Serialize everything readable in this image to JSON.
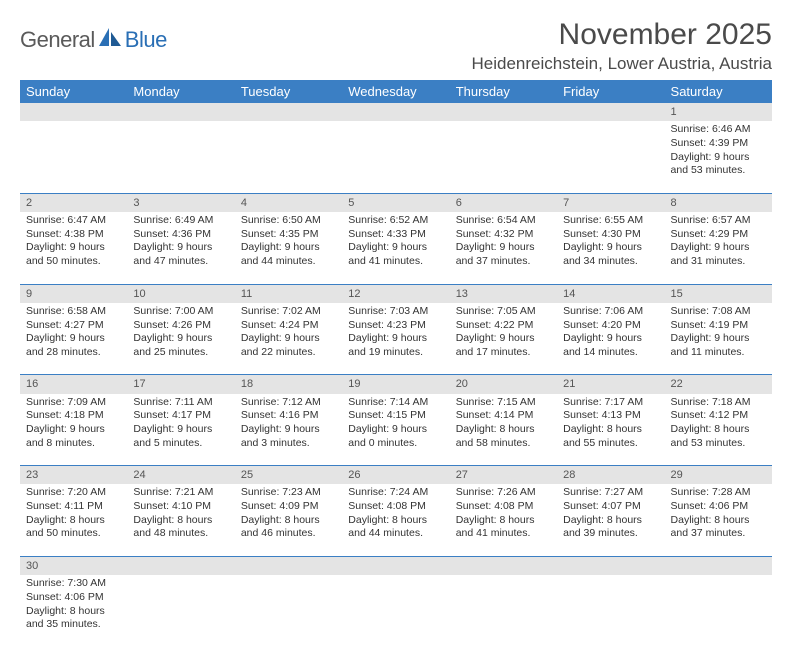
{
  "brand": {
    "text1": "General",
    "text2": "Blue"
  },
  "colors": {
    "header_bg": "#3b7fc4",
    "header_fg": "#ffffff",
    "daynum_bg": "#e4e4e4",
    "row_divider": "#3b7fc4",
    "body_text": "#333333",
    "title_text": "#4a4a4a",
    "logo_grey": "#5a5a5a",
    "logo_blue": "#2a6fb5"
  },
  "title": "November 2025",
  "location": "Heidenreichstein, Lower Austria, Austria",
  "weekdays": [
    "Sunday",
    "Monday",
    "Tuesday",
    "Wednesday",
    "Thursday",
    "Friday",
    "Saturday"
  ],
  "weeks": [
    [
      null,
      null,
      null,
      null,
      null,
      null,
      {
        "n": "1",
        "sr": "Sunrise: 6:46 AM",
        "ss": "Sunset: 4:39 PM",
        "dl": "Daylight: 9 hours and 53 minutes."
      }
    ],
    [
      {
        "n": "2",
        "sr": "Sunrise: 6:47 AM",
        "ss": "Sunset: 4:38 PM",
        "dl": "Daylight: 9 hours and 50 minutes."
      },
      {
        "n": "3",
        "sr": "Sunrise: 6:49 AM",
        "ss": "Sunset: 4:36 PM",
        "dl": "Daylight: 9 hours and 47 minutes."
      },
      {
        "n": "4",
        "sr": "Sunrise: 6:50 AM",
        "ss": "Sunset: 4:35 PM",
        "dl": "Daylight: 9 hours and 44 minutes."
      },
      {
        "n": "5",
        "sr": "Sunrise: 6:52 AM",
        "ss": "Sunset: 4:33 PM",
        "dl": "Daylight: 9 hours and 41 minutes."
      },
      {
        "n": "6",
        "sr": "Sunrise: 6:54 AM",
        "ss": "Sunset: 4:32 PM",
        "dl": "Daylight: 9 hours and 37 minutes."
      },
      {
        "n": "7",
        "sr": "Sunrise: 6:55 AM",
        "ss": "Sunset: 4:30 PM",
        "dl": "Daylight: 9 hours and 34 minutes."
      },
      {
        "n": "8",
        "sr": "Sunrise: 6:57 AM",
        "ss": "Sunset: 4:29 PM",
        "dl": "Daylight: 9 hours and 31 minutes."
      }
    ],
    [
      {
        "n": "9",
        "sr": "Sunrise: 6:58 AM",
        "ss": "Sunset: 4:27 PM",
        "dl": "Daylight: 9 hours and 28 minutes."
      },
      {
        "n": "10",
        "sr": "Sunrise: 7:00 AM",
        "ss": "Sunset: 4:26 PM",
        "dl": "Daylight: 9 hours and 25 minutes."
      },
      {
        "n": "11",
        "sr": "Sunrise: 7:02 AM",
        "ss": "Sunset: 4:24 PM",
        "dl": "Daylight: 9 hours and 22 minutes."
      },
      {
        "n": "12",
        "sr": "Sunrise: 7:03 AM",
        "ss": "Sunset: 4:23 PM",
        "dl": "Daylight: 9 hours and 19 minutes."
      },
      {
        "n": "13",
        "sr": "Sunrise: 7:05 AM",
        "ss": "Sunset: 4:22 PM",
        "dl": "Daylight: 9 hours and 17 minutes."
      },
      {
        "n": "14",
        "sr": "Sunrise: 7:06 AM",
        "ss": "Sunset: 4:20 PM",
        "dl": "Daylight: 9 hours and 14 minutes."
      },
      {
        "n": "15",
        "sr": "Sunrise: 7:08 AM",
        "ss": "Sunset: 4:19 PM",
        "dl": "Daylight: 9 hours and 11 minutes."
      }
    ],
    [
      {
        "n": "16",
        "sr": "Sunrise: 7:09 AM",
        "ss": "Sunset: 4:18 PM",
        "dl": "Daylight: 9 hours and 8 minutes."
      },
      {
        "n": "17",
        "sr": "Sunrise: 7:11 AM",
        "ss": "Sunset: 4:17 PM",
        "dl": "Daylight: 9 hours and 5 minutes."
      },
      {
        "n": "18",
        "sr": "Sunrise: 7:12 AM",
        "ss": "Sunset: 4:16 PM",
        "dl": "Daylight: 9 hours and 3 minutes."
      },
      {
        "n": "19",
        "sr": "Sunrise: 7:14 AM",
        "ss": "Sunset: 4:15 PM",
        "dl": "Daylight: 9 hours and 0 minutes."
      },
      {
        "n": "20",
        "sr": "Sunrise: 7:15 AM",
        "ss": "Sunset: 4:14 PM",
        "dl": "Daylight: 8 hours and 58 minutes."
      },
      {
        "n": "21",
        "sr": "Sunrise: 7:17 AM",
        "ss": "Sunset: 4:13 PM",
        "dl": "Daylight: 8 hours and 55 minutes."
      },
      {
        "n": "22",
        "sr": "Sunrise: 7:18 AM",
        "ss": "Sunset: 4:12 PM",
        "dl": "Daylight: 8 hours and 53 minutes."
      }
    ],
    [
      {
        "n": "23",
        "sr": "Sunrise: 7:20 AM",
        "ss": "Sunset: 4:11 PM",
        "dl": "Daylight: 8 hours and 50 minutes."
      },
      {
        "n": "24",
        "sr": "Sunrise: 7:21 AM",
        "ss": "Sunset: 4:10 PM",
        "dl": "Daylight: 8 hours and 48 minutes."
      },
      {
        "n": "25",
        "sr": "Sunrise: 7:23 AM",
        "ss": "Sunset: 4:09 PM",
        "dl": "Daylight: 8 hours and 46 minutes."
      },
      {
        "n": "26",
        "sr": "Sunrise: 7:24 AM",
        "ss": "Sunset: 4:08 PM",
        "dl": "Daylight: 8 hours and 44 minutes."
      },
      {
        "n": "27",
        "sr": "Sunrise: 7:26 AM",
        "ss": "Sunset: 4:08 PM",
        "dl": "Daylight: 8 hours and 41 minutes."
      },
      {
        "n": "28",
        "sr": "Sunrise: 7:27 AM",
        "ss": "Sunset: 4:07 PM",
        "dl": "Daylight: 8 hours and 39 minutes."
      },
      {
        "n": "29",
        "sr": "Sunrise: 7:28 AM",
        "ss": "Sunset: 4:06 PM",
        "dl": "Daylight: 8 hours and 37 minutes."
      }
    ],
    [
      {
        "n": "30",
        "sr": "Sunrise: 7:30 AM",
        "ss": "Sunset: 4:06 PM",
        "dl": "Daylight: 8 hours and 35 minutes."
      },
      null,
      null,
      null,
      null,
      null,
      null
    ]
  ]
}
